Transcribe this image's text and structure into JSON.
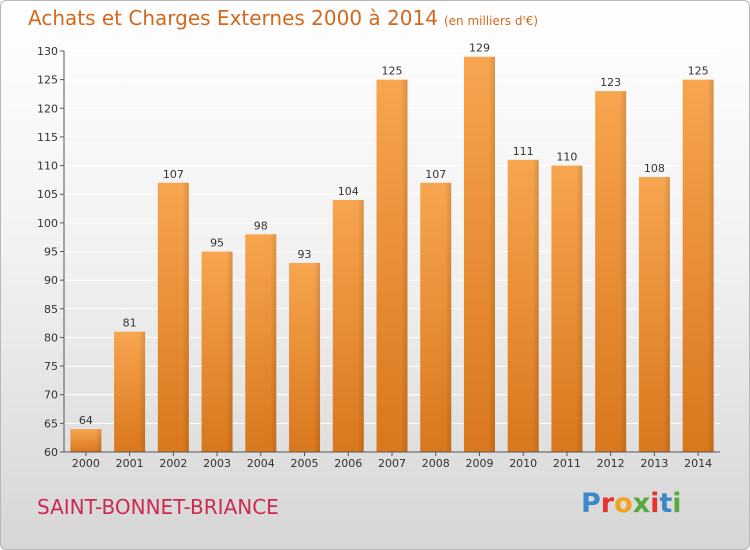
{
  "header": {
    "title": "Achats et Charges Externes 2000 à 2014",
    "unit": "(en milliers d'€)"
  },
  "footer": {
    "place": "SAINT-BONNET-BRIANCE",
    "logo_letters": [
      "P",
      "r",
      "o",
      "x",
      "i",
      "t",
      "i"
    ],
    "logo_colors": [
      "#3d88c9",
      "#e7332d",
      "#f4a21c",
      "#58a93d",
      "#e7332d",
      "#3d88c9",
      "#58a93d"
    ]
  },
  "colors": {
    "bar_top": "#f7a54f",
    "bar_bottom": "#d9771d",
    "title": "#d2691e",
    "place": "#cc2a50",
    "grid": "#ffffff",
    "axis": "#555555"
  },
  "chart_data": {
    "type": "bar",
    "title": "Achats et Charges Externes 2000 à 2014",
    "subtitle": "(en milliers d'€)",
    "categories": [
      "2000",
      "2001",
      "2002",
      "2003",
      "2004",
      "2005",
      "2006",
      "2007",
      "2008",
      "2009",
      "2010",
      "2011",
      "2012",
      "2013",
      "2014"
    ],
    "values": [
      64,
      81,
      107,
      95,
      98,
      93,
      104,
      125,
      107,
      129,
      111,
      110,
      123,
      108,
      125
    ],
    "xlabel": "",
    "ylabel": "",
    "ylim": [
      60,
      130
    ],
    "yticks": [
      60,
      65,
      70,
      75,
      80,
      85,
      90,
      95,
      100,
      105,
      110,
      115,
      120,
      125,
      130
    ],
    "grid": true,
    "legend": "none"
  }
}
